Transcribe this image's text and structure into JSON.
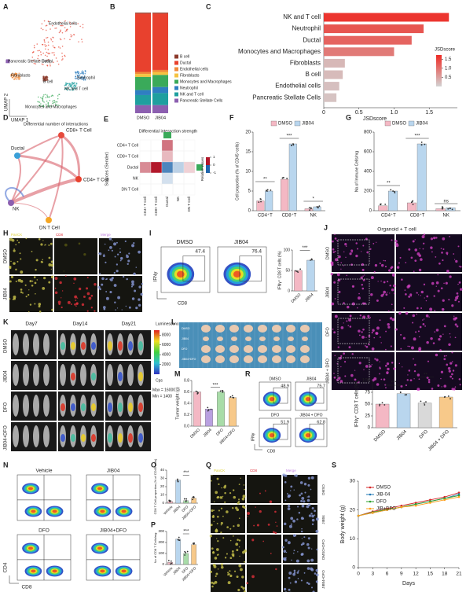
{
  "panels": {
    "A": {
      "label": "A",
      "clusters": [
        "Endothelial cells",
        "Pancreatic Stellate Cells",
        "Ductal",
        "Fibroblasts",
        "B cell",
        "Neutrophil",
        "NK and T cell",
        "Monocytes and Macrophages"
      ],
      "x_axis": "UMAP 1",
      "y_axis": "UMAP 2"
    },
    "B": {
      "label": "B",
      "groups": [
        "DMSO",
        "JIB04"
      ],
      "legend": [
        {
          "name": "B cell",
          "color": "#8c3a2b"
        },
        {
          "name": "Ductal",
          "color": "#e8412e"
        },
        {
          "name": "Endothelial cells",
          "color": "#f08a3a"
        },
        {
          "name": "Fibroblasts",
          "color": "#f5c342"
        },
        {
          "name": "Monocytes and Macrophages",
          "color": "#3aaa5a"
        },
        {
          "name": "Neutrophil",
          "color": "#2f7fc1"
        },
        {
          "name": "NK and T cell",
          "color": "#1f9f9f"
        },
        {
          "name": "Pancreatic Stellate Cells",
          "color": "#8c5fb0"
        }
      ],
      "values": [
        [
          1,
          58,
          2,
          3,
          13,
          5,
          10,
          8
        ],
        [
          1,
          56,
          2,
          3,
          12,
          6,
          12,
          8
        ]
      ]
    },
    "C": {
      "label": "C",
      "categories": [
        "NK and T cell",
        "Neutrophil",
        "Ductal",
        "Monocytes and Macrophages",
        "Fibroblasts",
        "B cell",
        "Endothelial cells",
        "Pancreatic Stellate Cells"
      ],
      "values": [
        1.78,
        1.42,
        1.25,
        1.0,
        0.3,
        0.27,
        0.22,
        0.18
      ],
      "xlim": [
        0,
        1.9
      ],
      "xticks": [
        0,
        0.5,
        {
          "value": 1,
          "label": "1.0"
        },
        1.5
      ],
      "x_axis": "JSDscore",
      "legend_title": "JSDscore",
      "legend_ticks": [
        1.5,
        {
          "value": 1,
          "label": "1.0"
        },
        0.5
      ],
      "colormap": [
        "#d3d3d3",
        "#ee2a24"
      ]
    },
    "D": {
      "label": "D",
      "title": "Differential number of interactions",
      "nodes": [
        "CD8+ T Cell",
        "Ductal",
        "CD4+ T Cell",
        "NK",
        "DN T Cell"
      ]
    },
    "E": {
      "label": "E",
      "title": "Differential interaction strength",
      "y_axis": "Sources (Sender)",
      "rows": [
        "CD4+ T Cell",
        "CD8+ T Cell",
        "Ductal",
        "NK",
        "DN T Cell"
      ],
      "matrix": [
        [
          0,
          0,
          0.6,
          0,
          0
        ],
        [
          0,
          0,
          0.3,
          0,
          0
        ],
        [
          0.5,
          1,
          -0.8,
          -0.3,
          0.2
        ],
        [
          0,
          0,
          -0.2,
          0,
          0
        ],
        [
          0,
          0,
          0,
          0,
          0
        ]
      ],
      "legend_title": "Relative values",
      "legend_ticks": [
        1,
        0,
        -1
      ]
    },
    "F": {
      "label": "F",
      "categories": [
        "CD4⁺T",
        "CD8⁺T",
        "NK"
      ],
      "series": [
        {
          "name": "DMSO",
          "color": "#f4b8c4",
          "values": [
            2.5,
            8,
            0.5
          ]
        },
        {
          "name": "JIB04",
          "color": "#b9d6ee",
          "values": [
            5,
            17,
            1
          ]
        }
      ],
      "ylim": [
        0,
        20
      ],
      "yticks": [
        0,
        5,
        10,
        15,
        20
      ],
      "y_axis": "Cell proportion (% of CD45⁺cells)",
      "sig": [
        "**",
        "***",
        "*"
      ]
    },
    "G": {
      "label": "G",
      "categories": [
        "CD4⁺T",
        "CD8⁺T",
        "NK"
      ],
      "series": [
        {
          "name": "DMSO",
          "color": "#f4b8c4",
          "values": [
            50,
            80,
            20
          ]
        },
        {
          "name": "JIB04",
          "color": "#b9d6ee",
          "values": [
            200,
            680,
            30
          ]
        }
      ],
      "ylim": [
        0,
        800
      ],
      "yticks": [
        0,
        200,
        400,
        600,
        800
      ],
      "y_axis": "No.of Immune Cells/mg",
      "sig": [
        "**",
        "***",
        "ns"
      ]
    },
    "H": {
      "label": "H",
      "channels": [
        "PanCK",
        "CD8",
        "Merge"
      ],
      "rows": [
        "DMSO",
        "JIB04"
      ]
    },
    "I": {
      "label": "I",
      "plots": [
        {
          "name": "DMSO",
          "value": 47.4
        },
        {
          "name": "JIB04",
          "value": 76.4
        }
      ],
      "x_axis": "CD8",
      "y_axis": "IFNγ",
      "bar": {
        "categories": [
          "DMSO",
          "JIB04"
        ],
        "series": [
          {
            "colors": [
              "#f4b8c4",
              "#b9d6ee"
            ],
            "values": [
              50,
              75
            ]
          }
        ],
        "ylim": [
          0,
          100
        ],
        "yticks": [
          0,
          50,
          100
        ],
        "y_axis": "IFNγ⁺ CD8 T cells (%)",
        "sig": [
          "***"
        ]
      }
    },
    "J": {
      "label": "J",
      "title": "Organoid + T cell",
      "rows": [
        "DMSO",
        "JIB04",
        "DFO",
        "JIB04 + DFO"
      ]
    },
    "K": {
      "label": "K",
      "days": [
        "Day7",
        "Day14",
        "Day21"
      ],
      "rows": [
        "DMSO",
        "JIB04",
        "DFO",
        "JIB04+DFO"
      ],
      "colorbar_title": "Luminescence",
      "colorbar_ticks": [
        8000,
        6000,
        4000,
        2000
      ],
      "unit": "Cps",
      "max": "Max = 16000",
      "min": "Min = 1400"
    },
    "L": {
      "label": "L",
      "rows": [
        "DMSO",
        "JIB04",
        "DFO",
        "JIB04+DFO"
      ]
    },
    "M": {
      "label": "M",
      "categories": [
        "DMSO",
        "JIB04",
        "DFO",
        "JIB04+DFO"
      ],
      "series": [
        {
          "colors": [
            "#f4b8c4",
            "#b9a0e0",
            "#a8dca8",
            "#f7c98a"
          ],
          "values": [
            0.6,
            0.3,
            0.6,
            0.5
          ]
        }
      ],
      "ylim": [
        0,
        0.8
      ],
      "yticks": [
        {
          "value": 0,
          "label": "0.0"
        },
        0.2,
        0.4,
        0.6,
        0.8
      ],
      "y_axis": "Tumor weight (g)",
      "sig": [
        "***"
      ]
    },
    "N": {
      "label": "N",
      "plots": [
        "Vehicle",
        "JIB04",
        "DFO",
        "JIB04+DFO"
      ],
      "x_axis": "CD8",
      "y_axis": "CD4"
    },
    "O": {
      "label": "O",
      "categories": [
        "Vehicle",
        "JIB04",
        "DFO",
        "JIB04+DFO"
      ],
      "series": [
        {
          "colors": [
            "#f4b8c4",
            "#b9d6ee",
            "#a8dca8",
            "#f7c98a"
          ],
          "values": [
            2,
            28,
            3,
            6
          ]
        }
      ],
      "ylim": [
        0,
        40
      ],
      "yticks": [
        0,
        10,
        20,
        30,
        40
      ],
      "y_axis": "CD8 T Cell proportion (% of CD45 cells)",
      "sig": [
        "***"
      ]
    },
    "P": {
      "label": "P",
      "categories": [
        "Vehicle",
        "JIB04",
        "DFO",
        "JIB04+DFO"
      ],
      "series": [
        {
          "colors": [
            "#f4b8c4",
            "#b9d6ee",
            "#a8dca8",
            "#f7c98a"
          ],
          "values": [
            20,
            230,
            100,
            180
          ]
        }
      ],
      "ylim": [
        0,
        300
      ],
      "yticks": [
        0,
        100,
        200,
        300
      ],
      "y_axis": "No of CD8 T Cells/mg",
      "sig": [
        "***"
      ]
    },
    "Q": {
      "label": "Q",
      "channels": [
        "PanCK",
        "CD8",
        "Merge"
      ],
      "rows": [
        "DMSO",
        "JIB04",
        "DMSO+DFO",
        "JIB04+DFO"
      ]
    },
    "R": {
      "label": "R",
      "plots": [
        {
          "name": "DMSO",
          "value": 48.9
        },
        {
          "name": "JIB04",
          "value": 75.7
        },
        {
          "name": "DFO",
          "value": 51.9
        },
        {
          "name": "JIB04 + DFO",
          "value": 62.8
        }
      ],
      "x_axis": "CD8",
      "y_axis": "IFNγ",
      "bar": {
        "categories": [
          "DMSO",
          "JIB04",
          "DFO",
          "JIB04 + DFO"
        ],
        "series": [
          {
            "colors": [
              "#f4b8c4",
              "#b9d6ee",
              "#d9d9d9",
              "#f7c98a"
            ],
            "values": [
              50,
              72,
              52,
              65
            ]
          }
        ],
        "ylim": [
          0,
          100
        ],
        "yticks": [
          0,
          25,
          50,
          75,
          100
        ],
        "y_axis": "IFNγ⁺ CD8 T cells (%)",
        "sig": [
          "***",
          "**"
        ]
      }
    },
    "S": {
      "label": "S",
      "x": [
        0,
        3,
        6,
        9,
        12,
        15,
        18,
        21
      ],
      "xlim": [
        0,
        21
      ],
      "xticks": [
        0,
        3,
        6,
        9,
        12,
        15,
        18,
        21
      ],
      "ylim": [
        0,
        30
      ],
      "yticks": [
        0,
        10,
        20,
        30
      ],
      "x_axis": "Days",
      "y_axis": "Body weight (g)",
      "series": [
        {
          "name": "DMSO",
          "color": "#d62728",
          "values": [
            18,
            19.5,
            20.5,
            21.5,
            22.5,
            23.5,
            24.5,
            26
          ]
        },
        {
          "name": "JIB-04",
          "color": "#1f77b4",
          "values": [
            18,
            19,
            20,
            21,
            22,
            23,
            24,
            25.5
          ]
        },
        {
          "name": "DFO",
          "color": "#2ca02c",
          "values": [
            18,
            19.2,
            20.2,
            21,
            22,
            23,
            24,
            25
          ]
        },
        {
          "name": "JIB+DFO",
          "color": "#ff9f1c",
          "values": [
            18,
            19,
            20,
            21,
            21.5,
            22.5,
            23.5,
            24.5
          ]
        }
      ]
    }
  }
}
